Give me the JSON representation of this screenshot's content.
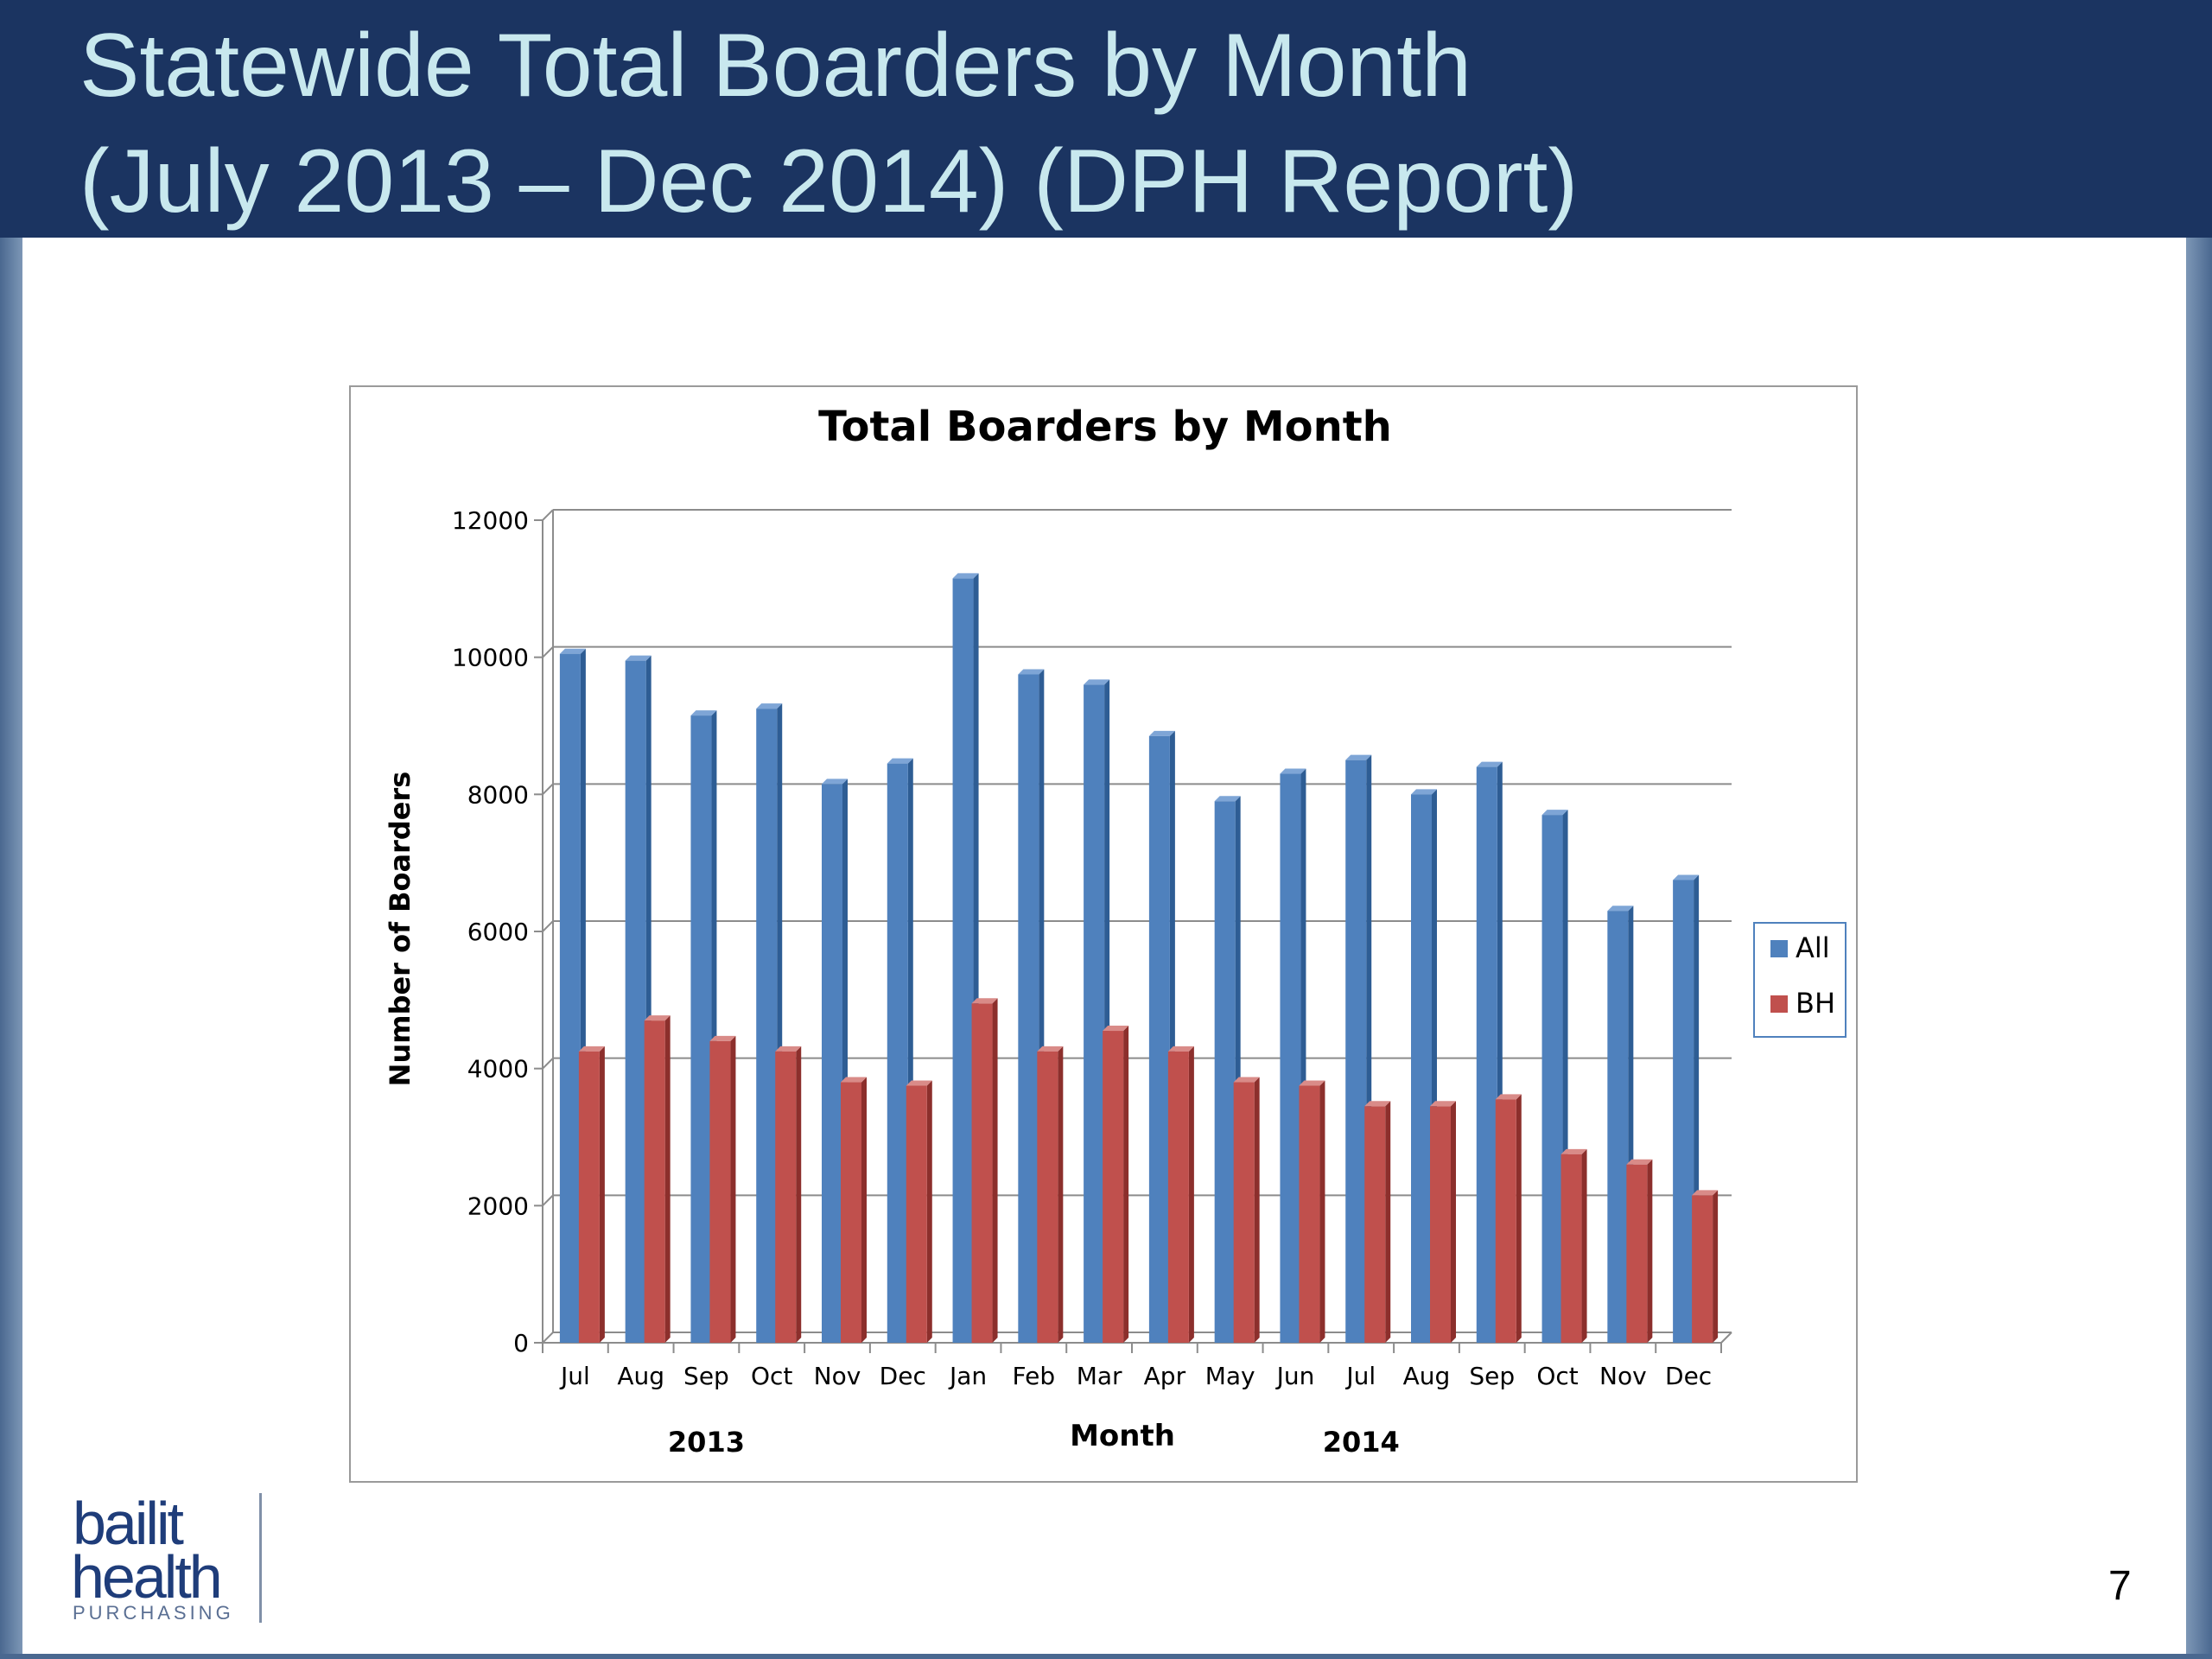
{
  "slide": {
    "title_line1": "Statewide Total Boarders by Month",
    "title_line2": "(July 2013 – Dec 2014) (DPH Report)",
    "page_number": "7",
    "logo": {
      "line1": "bailit",
      "line2": "health",
      "line3": "PURCHASING"
    }
  },
  "colors": {
    "header_bg": "#1b3461",
    "title_text": "#c8e8ee",
    "all_series": "#4f81bd",
    "bh_series": "#c0504d"
  },
  "chart_data": {
    "type": "bar",
    "title": "Total Boarders by Month",
    "xlabel": "Month",
    "ylabel": "Number of Boarders",
    "ylim": [
      0,
      12000
    ],
    "yticks": [
      0,
      2000,
      4000,
      6000,
      8000,
      10000,
      12000
    ],
    "grid": true,
    "legend_position": "right",
    "categories": [
      "Jul",
      "Aug",
      "Sep",
      "Oct",
      "Nov",
      "Dec",
      "Jan",
      "Feb",
      "Mar",
      "Apr",
      "May",
      "Jun",
      "Jul",
      "Aug",
      "Sep",
      "Oct",
      "Nov",
      "Dec"
    ],
    "year_labels": [
      {
        "label": "2013",
        "center_index": 2
      },
      {
        "label": "2014",
        "center_index": 12
      }
    ],
    "series": [
      {
        "name": "All",
        "values": [
          10050,
          9950,
          9150,
          9250,
          8150,
          8450,
          11150,
          9750,
          9600,
          8850,
          7900,
          8300,
          8500,
          8000,
          8400,
          7700,
          6300,
          6750
        ]
      },
      {
        "name": "BH",
        "values": [
          4250,
          4700,
          4400,
          4250,
          3800,
          3750,
          4950,
          4250,
          4550,
          4250,
          3800,
          3750,
          3450,
          3450,
          3550,
          2750,
          2600,
          2150
        ]
      }
    ]
  }
}
